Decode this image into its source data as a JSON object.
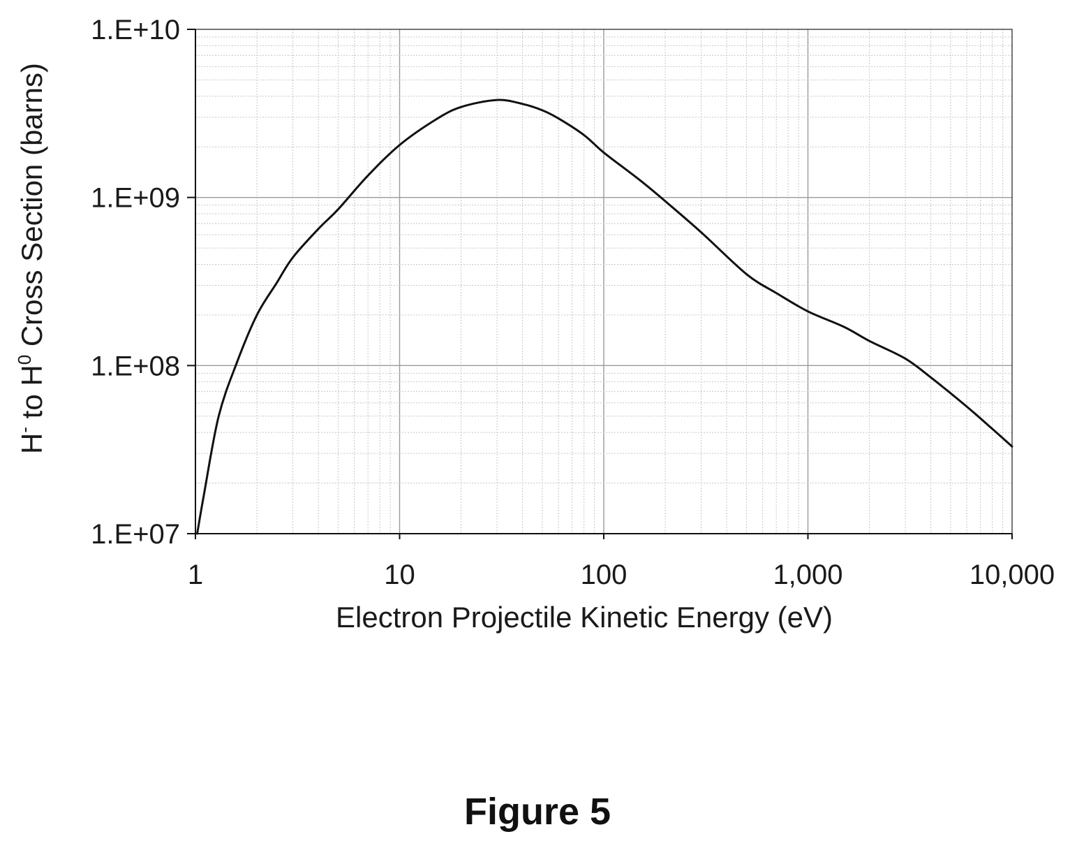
{
  "chart_data": {
    "type": "line",
    "x_scale": "log",
    "y_scale": "log",
    "xlim": [
      1,
      10000
    ],
    "ylim": [
      10000000,
      10000000000
    ],
    "grid": true,
    "xlabel": "Electron Projectile Kinetic Energy (eV)",
    "ylabel": {
      "prefix": "H",
      "sup1": "-",
      "middle": " to H",
      "sup2": "0",
      "suffix": " Cross Section (barns)"
    },
    "x_ticks": [
      {
        "value": 1,
        "label": "1"
      },
      {
        "value": 10,
        "label": "10"
      },
      {
        "value": 100,
        "label": "100"
      },
      {
        "value": 1000,
        "label": "1,000"
      },
      {
        "value": 10000,
        "label": "10,000"
      }
    ],
    "y_ticks": [
      {
        "value": 10000000,
        "label": "1.E+07"
      },
      {
        "value": 100000000,
        "label": "1.E+08"
      },
      {
        "value": 1000000000,
        "label": "1.E+09"
      },
      {
        "value": 10000000000,
        "label": "1.E+10"
      }
    ],
    "series": [
      {
        "color": "#111111",
        "x": [
          1.02,
          1.1,
          1.3,
          1.6,
          2,
          2.5,
          3,
          4,
          5,
          7,
          10,
          15,
          20,
          30,
          40,
          50,
          60,
          80,
          100,
          150,
          200,
          300,
          500,
          700,
          1000,
          1500,
          2000,
          3000,
          4000,
          6000,
          8000,
          10000
        ],
        "y": [
          10000000,
          17000000,
          50000000,
          105000000,
          200000000,
          310000000,
          440000000,
          650000000,
          850000000,
          1350000000,
          2050000000,
          2900000000,
          3450000000,
          3800000000,
          3600000000,
          3300000000,
          2950000000,
          2350000000,
          1850000000,
          1270000000,
          950000000,
          620000000,
          350000000,
          270000000,
          210000000,
          170000000,
          140000000,
          110000000,
          85000000,
          57000000,
          42000000,
          33000000
        ]
      }
    ]
  },
  "caption": "Figure 5"
}
